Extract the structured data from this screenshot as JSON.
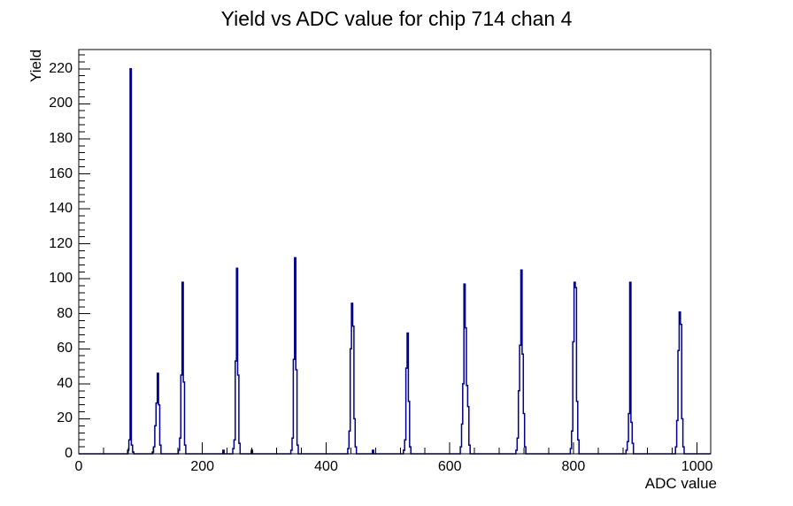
{
  "title": "Yield vs ADC value for chip 714 chan 4",
  "colors": {
    "histogram": "#00008c",
    "axis": "#000000",
    "text": "#000000",
    "background": "#ffffff"
  },
  "chart_data": {
    "type": "bar",
    "title": "Yield vs ADC value for chip 714 chan 4",
    "xlabel": "ADC value",
    "ylabel": "Yield",
    "xlim": [
      0,
      1022
    ],
    "ylim": [
      0,
      231
    ],
    "x_major_ticks": [
      0,
      200,
      400,
      600,
      800,
      1000
    ],
    "x_minor_interval": 40,
    "y_major_ticks": [
      0,
      20,
      40,
      60,
      80,
      100,
      120,
      140,
      160,
      180,
      200,
      220
    ],
    "y_minor_interval": 4,
    "grid": false,
    "legend": false,
    "bin_width": 2,
    "bins": [
      [
        79,
        2
      ],
      [
        81,
        8
      ],
      [
        83,
        220
      ],
      [
        85,
        5
      ],
      [
        87,
        1
      ],
      [
        119,
        1
      ],
      [
        121,
        4
      ],
      [
        123,
        16
      ],
      [
        125,
        29
      ],
      [
        127,
        46
      ],
      [
        129,
        28
      ],
      [
        131,
        5
      ],
      [
        161,
        2
      ],
      [
        163,
        9
      ],
      [
        165,
        45
      ],
      [
        167,
        98
      ],
      [
        169,
        41
      ],
      [
        171,
        5
      ],
      [
        233,
        2
      ],
      [
        249,
        3
      ],
      [
        251,
        8
      ],
      [
        253,
        53
      ],
      [
        255,
        106
      ],
      [
        257,
        45
      ],
      [
        259,
        6
      ],
      [
        279,
        2
      ],
      [
        343,
        2
      ],
      [
        345,
        9
      ],
      [
        347,
        54
      ],
      [
        349,
        112
      ],
      [
        351,
        48
      ],
      [
        353,
        5
      ],
      [
        435,
        3
      ],
      [
        437,
        13
      ],
      [
        439,
        60
      ],
      [
        441,
        86
      ],
      [
        443,
        73
      ],
      [
        445,
        20
      ],
      [
        447,
        4
      ],
      [
        475,
        2
      ],
      [
        525,
        2
      ],
      [
        527,
        8
      ],
      [
        529,
        49
      ],
      [
        531,
        69
      ],
      [
        533,
        30
      ],
      [
        535,
        4
      ],
      [
        617,
        4
      ],
      [
        619,
        17
      ],
      [
        621,
        40
      ],
      [
        623,
        97
      ],
      [
        625,
        72
      ],
      [
        627,
        39
      ],
      [
        629,
        27
      ],
      [
        631,
        5
      ],
      [
        707,
        2
      ],
      [
        709,
        9
      ],
      [
        711,
        36
      ],
      [
        713,
        62
      ],
      [
        715,
        105
      ],
      [
        717,
        57
      ],
      [
        719,
        23
      ],
      [
        721,
        4
      ],
      [
        795,
        3
      ],
      [
        797,
        13
      ],
      [
        799,
        64
      ],
      [
        801,
        98
      ],
      [
        803,
        95
      ],
      [
        805,
        30
      ],
      [
        807,
        8
      ],
      [
        885,
        2
      ],
      [
        887,
        7
      ],
      [
        889,
        23
      ],
      [
        891,
        98
      ],
      [
        893,
        18
      ],
      [
        895,
        6
      ],
      [
        965,
        4
      ],
      [
        967,
        19
      ],
      [
        969,
        59
      ],
      [
        971,
        81
      ],
      [
        973,
        74
      ],
      [
        975,
        20
      ],
      [
        977,
        4
      ]
    ]
  }
}
